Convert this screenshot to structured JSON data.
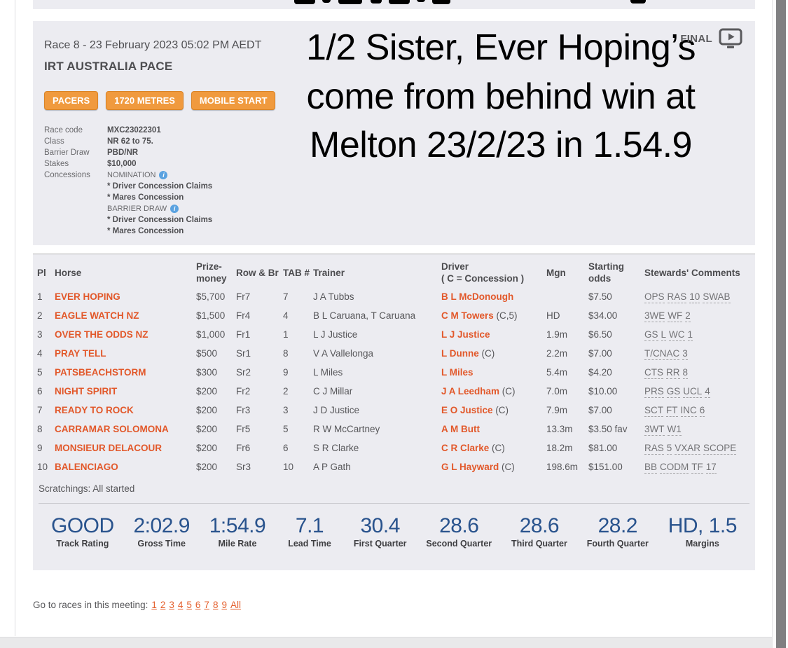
{
  "colors": {
    "accent_orange": "#e2582a",
    "badge_orange": "#f09a3e",
    "stat_navy": "#29538d",
    "info_blue": "#5aa2e0"
  },
  "overlay": {
    "headline": "1/2 Sister, Ever Hoping’s come from behind win at Melton 23/2/23 in 1.54.9",
    "final_label": "FINAL",
    "replay_icon": "tv-play-icon"
  },
  "race_header": {
    "race_line": "Race 8 - 23 February 2023 05:02 PM AEDT",
    "race_name": "IRT AUSTRALIA PACE",
    "badges": [
      "PACERS",
      "1720 METRES",
      "MOBILE START"
    ]
  },
  "race_details": {
    "rows": [
      {
        "label": "Race code",
        "value": "MXC23022301"
      },
      {
        "label": "Class",
        "value": "NR 62 to 75."
      },
      {
        "label": "Barrier Draw",
        "value": "PBD/NR"
      },
      {
        "label": "Stakes",
        "value": "$10,000"
      }
    ],
    "concessions_label": "Concessions",
    "concessions": [
      {
        "text": "NOMINATION",
        "bold": false,
        "info_icon": true
      },
      {
        "text": "* Driver Concession Claims",
        "bold": true,
        "info_icon": false
      },
      {
        "text": "* Mares Concession",
        "bold": true,
        "info_icon": false
      },
      {
        "text": "BARRIER DRAW",
        "bold": false,
        "info_icon": true
      },
      {
        "text": "* Driver Concession Claims",
        "bold": true,
        "info_icon": false
      },
      {
        "text": "* Mares Concession",
        "bold": true,
        "info_icon": false
      }
    ]
  },
  "results_table": {
    "headers": {
      "pl": "Pl",
      "horse": "Horse",
      "prize": "Prize-money",
      "row_br": "Row & Br",
      "tab": "TAB #",
      "trainer": "Trainer",
      "driver_l1": "Driver",
      "driver_l2": "( C = Concession )",
      "mgn": "Mgn",
      "odds": "Starting odds",
      "comments": "Stewards' Comments"
    },
    "rows": [
      {
        "pl": "1",
        "horse": "EVER HOPING",
        "prize": "$5,700",
        "row_br": "Fr7",
        "tab": "7",
        "trainer": "J A Tubbs",
        "driver": "B L McDonough",
        "driver_note": "",
        "mgn": "",
        "odds": "$7.50",
        "comments": "OPS RAS 10 SWAB"
      },
      {
        "pl": "2",
        "horse": "EAGLE WATCH NZ",
        "prize": "$1,500",
        "row_br": "Fr4",
        "tab": "4",
        "trainer": "B L Caruana, T Caruana",
        "driver": "C M Towers",
        "driver_note": "(C,5)",
        "mgn": "HD",
        "odds": "$34.00",
        "comments": "3WE WF 2"
      },
      {
        "pl": "3",
        "horse": "OVER THE ODDS NZ",
        "prize": "$1,000",
        "row_br": "Fr1",
        "tab": "1",
        "trainer": "L J Justice",
        "driver": "L J Justice",
        "driver_note": "",
        "mgn": "1.9m",
        "odds": "$6.50",
        "comments": "GS L WC 1"
      },
      {
        "pl": "4",
        "horse": "PRAY TELL",
        "prize": "$500",
        "row_br": "Sr1",
        "tab": "8",
        "trainer": "V A Vallelonga",
        "driver": "L Dunne",
        "driver_note": "(C)",
        "mgn": "2.2m",
        "odds": "$7.00",
        "comments": "T/CNAC 3"
      },
      {
        "pl": "5",
        "horse": "PATSBEACHSTORM",
        "prize": "$300",
        "row_br": "Sr2",
        "tab": "9",
        "trainer": "L Miles",
        "driver": "L Miles",
        "driver_note": "",
        "mgn": "5.4m",
        "odds": "$4.20",
        "comments": "CTS RR 8"
      },
      {
        "pl": "6",
        "horse": "NIGHT SPIRIT",
        "prize": "$200",
        "row_br": "Fr2",
        "tab": "2",
        "trainer": "C J Millar",
        "driver": "J A Leedham",
        "driver_note": "(C)",
        "mgn": "7.0m",
        "odds": "$10.00",
        "comments": "PRS GS UCL 4"
      },
      {
        "pl": "7",
        "horse": "READY TO ROCK",
        "prize": "$200",
        "row_br": "Fr3",
        "tab": "3",
        "trainer": "J D Justice",
        "driver": "E O Justice",
        "driver_note": "(C)",
        "mgn": "7.9m",
        "odds": "$7.00",
        "comments": "SCT FT INC 6"
      },
      {
        "pl": "8",
        "horse": "CARRAMAR SOLOMONA",
        "prize": "$200",
        "row_br": "Fr5",
        "tab": "5",
        "trainer": "R W McCartney",
        "driver": "A M Butt",
        "driver_note": "",
        "mgn": "13.3m",
        "odds": "$3.50 fav",
        "comments": "3WT W1"
      },
      {
        "pl": "9",
        "horse": "MONSIEUR DELACOUR",
        "prize": "$200",
        "row_br": "Fr6",
        "tab": "6",
        "trainer": "S R Clarke",
        "driver": "C R Clarke",
        "driver_note": "(C)",
        "mgn": "18.2m",
        "odds": "$81.00",
        "comments": "RAS 5 VXAR SCOPE"
      },
      {
        "pl": "10",
        "horse": "BALENCIAGO",
        "prize": "$200",
        "row_br": "Sr3",
        "tab": "10",
        "trainer": "A P Gath",
        "driver": "G L Hayward",
        "driver_note": "(C)",
        "mgn": "198.6m",
        "odds": "$151.00",
        "comments": "BB CODM TF 17"
      }
    ],
    "scratchings": "Scratchings: All started"
  },
  "race_stats": [
    {
      "value": "GOOD",
      "label": "Track Rating"
    },
    {
      "value": "2:02.9",
      "label": "Gross Time"
    },
    {
      "value": "1:54.9",
      "label": "Mile Rate"
    },
    {
      "value": "7.1",
      "label": "Lead Time"
    },
    {
      "value": "30.4",
      "label": "First Quarter"
    },
    {
      "value": "28.6",
      "label": "Second Quarter"
    },
    {
      "value": "28.6",
      "label": "Third Quarter"
    },
    {
      "value": "28.2",
      "label": "Fourth Quarter"
    },
    {
      "value": "HD, 1.5",
      "label": "Margins"
    }
  ],
  "races_nav": {
    "prefix": "Go to races in this meeting:",
    "links": [
      "1",
      "2",
      "3",
      "4",
      "5",
      "6",
      "7",
      "8",
      "9",
      "All"
    ]
  }
}
